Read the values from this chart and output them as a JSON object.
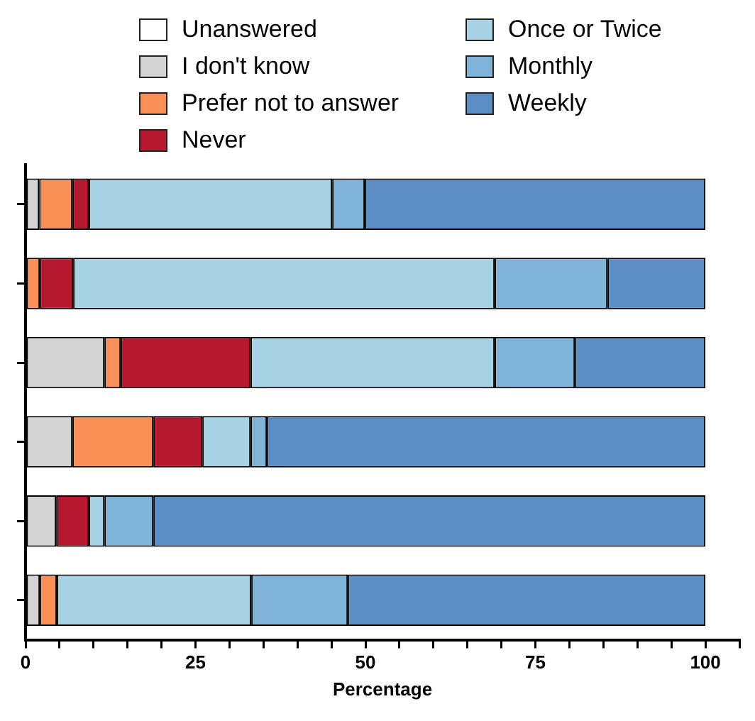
{
  "chart_data": {
    "type": "bar",
    "orientation": "horizontal",
    "stacked": true,
    "xlabel": "Percentage",
    "categories": [
      null,
      null,
      null,
      null,
      null,
      null
    ],
    "series": [
      {
        "name": "Unanswered",
        "color": "#ffffff",
        "values": [
          0,
          0,
          0,
          0,
          0,
          0
        ]
      },
      {
        "name": "I don't know",
        "color": "#d4d4d4",
        "values": [
          2.0,
          0,
          11.6,
          6.9,
          4.5,
          2.1
        ]
      },
      {
        "name": "Prefer not to answer",
        "color": "#f99157",
        "values": [
          4.9,
          2.1,
          2.4,
          11.9,
          0,
          2.5
        ]
      },
      {
        "name": "Never",
        "color": "#b5182f",
        "values": [
          2.4,
          4.9,
          19.1,
          7.2,
          4.8,
          0
        ]
      },
      {
        "name": "Once or Twice",
        "color": "#a8d3e6",
        "values": [
          35.8,
          62.0,
          35.9,
          7.1,
          2.3,
          28.6
        ]
      },
      {
        "name": "Monthly",
        "color": "#80b3d8",
        "values": [
          4.8,
          16.6,
          11.8,
          2.4,
          7.2,
          14.2
        ]
      },
      {
        "name": "Weekly",
        "color": "#5b8ec4",
        "values": [
          50.1,
          14.4,
          19.2,
          64.5,
          81.2,
          52.6
        ]
      }
    ],
    "xlim": [
      0,
      105
    ],
    "xticks": [
      0,
      {
        "value": 5,
        "label": null
      },
      {
        "value": 10,
        "label": null
      },
      {
        "value": 15,
        "label": null
      },
      {
        "value": 20,
        "label": null
      },
      25,
      {
        "value": 30,
        "label": null
      },
      {
        "value": 35,
        "label": null
      },
      {
        "value": 40,
        "label": null
      },
      {
        "value": 45,
        "label": null
      },
      50,
      {
        "value": 55,
        "label": null
      },
      {
        "value": 60,
        "label": null
      },
      {
        "value": 65,
        "label": null
      },
      {
        "value": 70,
        "label": null
      },
      75,
      {
        "value": 80,
        "label": null
      },
      {
        "value": 85,
        "label": null
      },
      {
        "value": 90,
        "label": null
      },
      {
        "value": 95,
        "label": null
      },
      100,
      {
        "value": 105,
        "label": null
      }
    ],
    "tick_labels": "x",
    "legend": "top",
    "grid": false
  }
}
